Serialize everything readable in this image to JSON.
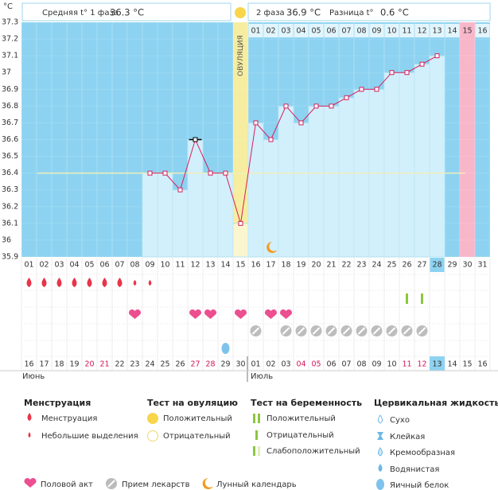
{
  "header": {
    "phase1_label": "Средняя t° 1 фаза",
    "phase1_value": "36.3 °C",
    "phase2_label": "2 фаза",
    "phase2_value": "36.9 °C",
    "diff_label": "Разница t°",
    "diff_value": "0.6 °C"
  },
  "chart_data": {
    "type": "line",
    "y_unit": "°C",
    "ovulation_label": "ОВУЛЯЦИЯ",
    "categories": [
      "01",
      "02",
      "03",
      "04",
      "05",
      "06",
      "07",
      "08",
      "09",
      "10",
      "11",
      "12",
      "13",
      "14",
      "15",
      "16",
      "17",
      "18",
      "19",
      "20",
      "21",
      "22",
      "23",
      "24",
      "25",
      "26",
      "27",
      "28",
      "29",
      "30",
      "31"
    ],
    "values": [
      null,
      null,
      null,
      null,
      null,
      null,
      null,
      null,
      36.4,
      36.4,
      36.3,
      36.6,
      36.4,
      36.4,
      36.1,
      36.7,
      36.6,
      36.8,
      36.7,
      36.8,
      36.8,
      36.85,
      36.9,
      36.9,
      37.0,
      37.0,
      37.05,
      37.1,
      null,
      null,
      null
    ],
    "coverline": 36.4,
    "ylim": [
      35.9,
      37.3
    ],
    "yticks": [
      35.9,
      36,
      36.1,
      36.2,
      36.3,
      36.4,
      36.5,
      36.6,
      36.7,
      36.8,
      36.9,
      37,
      37.1,
      37.2,
      37.3
    ],
    "phase2_days": [
      "01",
      "02",
      "03",
      "04",
      "05",
      "06",
      "07",
      "08",
      "09",
      "10",
      "11",
      "12",
      "13",
      "14",
      "15",
      "16"
    ],
    "dates": [
      "16",
      "17",
      "18",
      "19",
      "20",
      "21",
      "22",
      "23",
      "24",
      "25",
      "26",
      "27",
      "28",
      "29",
      "30",
      "01",
      "02",
      "03",
      "04",
      "05",
      "06",
      "07",
      "08",
      "09",
      "10",
      "11",
      "12",
      "13",
      "14",
      "15",
      "16"
    ],
    "months": [
      "Июнь",
      "Июль"
    ]
  },
  "legend": {
    "menstruation": {
      "title": "Менструация",
      "items": [
        "Менструация",
        "Небольшие выделения"
      ]
    },
    "ovulation_test": {
      "title": "Тест на овуляцию",
      "items": [
        "Положительный",
        "Отрицательный"
      ]
    },
    "pregnancy_test": {
      "title": "Тест на беременность",
      "items": [
        "Положительный",
        "Отрицательный",
        "Слабоположительный"
      ]
    },
    "cervical_fluid": {
      "title": "Цервикальная жидкость",
      "items": [
        "Сухо",
        "Клейкая",
        "Кремообразная",
        "Водянистая",
        "Яичный белок"
      ]
    },
    "other": [
      "Половой акт",
      "Прием лекарств",
      "Лунный календарь"
    ]
  }
}
